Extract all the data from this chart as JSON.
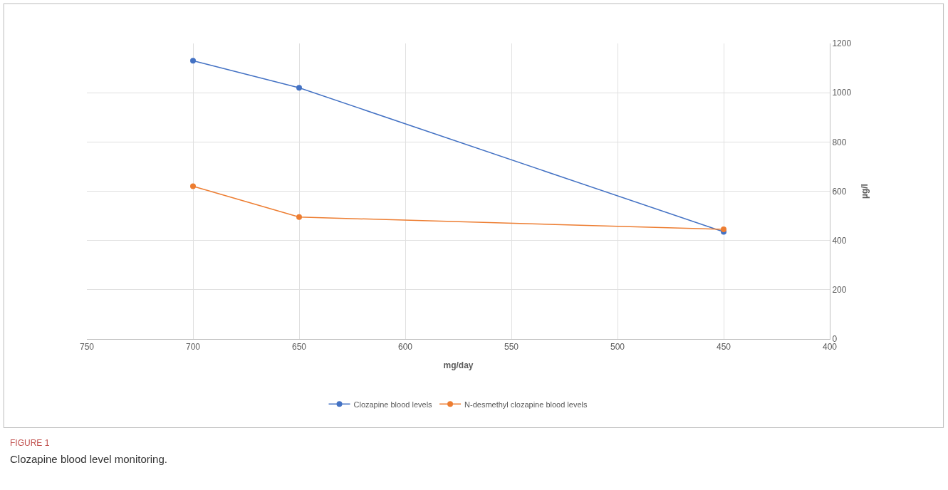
{
  "chart_data": {
    "type": "line",
    "xlabel": "mg/day",
    "ylabel": "µg/l",
    "x": [
      700,
      650,
      450
    ],
    "series": [
      {
        "name": "Clozapine blood levels",
        "color": "#4472c4",
        "values": [
          1130,
          1020,
          435
        ]
      },
      {
        "name": "N-desmethyl clozapine blood levels",
        "color": "#ed7d31",
        "values": [
          620,
          495,
          445
        ]
      }
    ],
    "xlim": [
      750,
      400
    ],
    "xticks": [
      750,
      700,
      650,
      600,
      550,
      500,
      450,
      400
    ],
    "ylim": [
      0,
      1200
    ],
    "yticks": [
      0,
      200,
      400,
      600,
      800,
      1000,
      1200
    ],
    "grid": true,
    "legend": "bottom",
    "marker": "circle",
    "line_style": "solid",
    "annotations": [
      "FIGURE 1",
      "Clozapine blood level monitoring."
    ]
  }
}
